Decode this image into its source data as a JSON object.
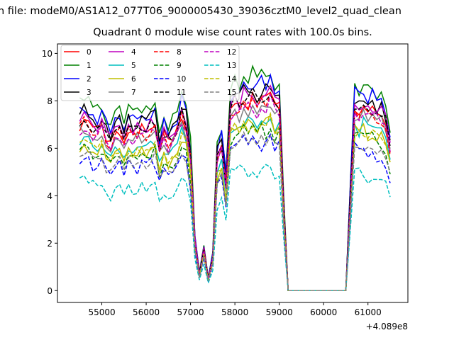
{
  "suptitle": "n file: modeM0/AS1A12_077T06_9000005430_39036cztM0_level2_quad_clean",
  "chart_data": {
    "type": "line",
    "title": "Quadrant 0 module wise count rates with 100.0s bins.",
    "xlabel": "",
    "ylabel": "",
    "x_offset_label": "+4.089e8",
    "xlim": [
      54000,
      61900
    ],
    "ylim": [
      -0.5,
      10.4
    ],
    "xticks": [
      55000,
      56000,
      57000,
      58000,
      59000,
      60000,
      61000
    ],
    "xtick_labels": [
      "55000",
      "56000",
      "57000",
      "58000",
      "59000",
      "60000",
      "61000"
    ],
    "yticks": [
      0,
      2,
      4,
      6,
      8,
      10
    ],
    "ytick_labels": [
      "0",
      "2",
      "4",
      "6",
      "8",
      "10"
    ],
    "grid": false,
    "legend_placement": "top-left",
    "legend_columns": 4,
    "x_start": 54500,
    "x_step": 100,
    "profile_note": "series value = level x profile (approximate shared light-curve shape)",
    "profile": [
      1.0,
      1.03,
      1.0,
      0.97,
      0.96,
      0.99,
      0.92,
      0.89,
      0.93,
      0.97,
      0.91,
      0.97,
      0.94,
      0.96,
      0.97,
      0.95,
      0.98,
      1.0,
      0.84,
      0.93,
      0.88,
      0.92,
      0.96,
      1.06,
      1.0,
      0.8,
      0.3,
      0.1,
      0.25,
      0.07,
      0.2,
      0.8,
      0.86,
      0.64,
      1.08,
      1.12,
      1.11,
      1.15,
      1.13,
      1.16,
      1.11,
      1.15,
      1.14,
      1.18,
      1.1,
      1.12,
      0.5,
      0,
      0,
      0,
      0,
      0,
      0,
      0,
      0,
      0,
      0,
      0,
      0,
      0,
      0,
      0.55,
      1.1,
      1.08,
      1.11,
      1.07,
      1.08,
      1.05,
      1.06,
      1.0,
      0.86
    ],
    "series": [
      {
        "name": "0",
        "level": 7.0,
        "color": "#ff0000",
        "dash": false
      },
      {
        "name": "1",
        "level": 7.9,
        "color": "#008000",
        "dash": false
      },
      {
        "name": "2",
        "level": 7.6,
        "color": "#0000ff",
        "dash": false
      },
      {
        "name": "3",
        "level": 7.4,
        "color": "#000000",
        "dash": false
      },
      {
        "name": "4",
        "level": 7.2,
        "color": "#bf00bf",
        "dash": false
      },
      {
        "name": "5",
        "level": 6.3,
        "color": "#00bfbf",
        "dash": false
      },
      {
        "name": "6",
        "level": 6.1,
        "color": "#bfbf00",
        "dash": false
      },
      {
        "name": "7",
        "level": 6.7,
        "color": "#808080",
        "dash": false
      },
      {
        "name": "8",
        "level": 6.9,
        "color": "#ff0000",
        "dash": true
      },
      {
        "name": "9",
        "level": 5.9,
        "color": "#008000",
        "dash": true
      },
      {
        "name": "10",
        "level": 5.4,
        "color": "#0000ff",
        "dash": true
      },
      {
        "name": "11",
        "level": 7.1,
        "color": "#000000",
        "dash": true
      },
      {
        "name": "12",
        "level": 6.8,
        "color": "#bf00bf",
        "dash": true
      },
      {
        "name": "13",
        "level": 4.5,
        "color": "#00bfbf",
        "dash": true
      },
      {
        "name": "14",
        "level": 6.1,
        "color": "#bfbf00",
        "dash": true
      },
      {
        "name": "15",
        "level": 5.6,
        "color": "#808080",
        "dash": true
      }
    ]
  }
}
